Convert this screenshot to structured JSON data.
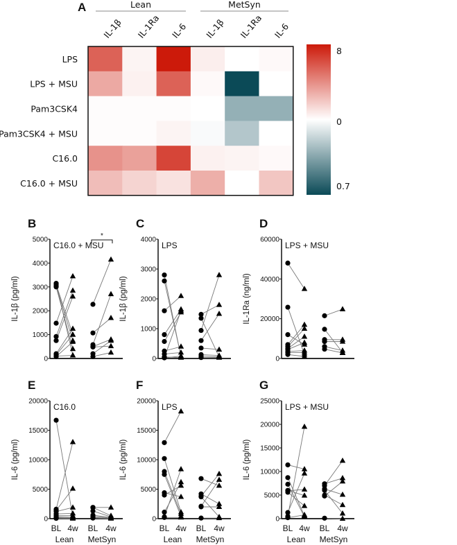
{
  "chart_data": [
    {
      "type": "heatmap",
      "panel": "A",
      "groups": [
        "Lean",
        "MetSyn"
      ],
      "columns": [
        "IL-1β",
        "IL-1Ra",
        "IL-6",
        "IL-1β",
        "IL-1Ra",
        "IL-6"
      ],
      "rows": [
        "LPS",
        "LPS + MSU",
        "Pam3CSK4",
        "Pam3CSK4 + MSU",
        "C16.0",
        "C16.0 + MSU"
      ],
      "values": [
        [
          5.5,
          0.4,
          8,
          0.6,
          0,
          0.2
        ],
        [
          3,
          0.5,
          5.5,
          0.2,
          -8,
          0
        ],
        [
          0.1,
          0.1,
          0.1,
          0,
          -3.5,
          -3.5
        ],
        [
          0.1,
          0.1,
          0.4,
          -0.2,
          -2.5,
          0
        ],
        [
          3.8,
          3.3,
          6.5,
          0.5,
          0.4,
          0.2
        ],
        [
          2.3,
          1.5,
          1,
          2.8,
          0,
          2
        ]
      ],
      "colorbar": {
        "labels": [
          "8",
          "0",
          "0.7"
        ],
        "max_color": "#cc1a0a",
        "mid_color": "#ffffff",
        "min_color": "#0b4a57"
      }
    },
    {
      "type": "scatter",
      "panel": "B",
      "title": "C16.0 + MSU",
      "ylabel": "IL-1β (pg/ml)",
      "ylim": [
        0,
        5000
      ],
      "yticks": [
        "0",
        "1000",
        "2000",
        "3000",
        "4000",
        "5000"
      ],
      "annotation": "*",
      "lean": [
        [
          3150,
          130
        ],
        [
          3100,
          1000
        ],
        [
          3050,
          750
        ],
        [
          3000,
          400
        ],
        [
          1480,
          3450
        ],
        [
          920,
          2850
        ],
        [
          750,
          2600
        ],
        [
          200,
          1250
        ],
        [
          150,
          1000
        ],
        [
          100,
          130
        ],
        [
          80,
          700
        ]
      ],
      "metsyn": [
        [
          2270,
          4150
        ],
        [
          1070,
          1700
        ],
        [
          580,
          2700
        ],
        [
          500,
          800
        ],
        [
          480,
          520
        ],
        [
          200,
          750
        ],
        [
          80,
          250
        ]
      ]
    },
    {
      "type": "scatter",
      "panel": "C",
      "title": "LPS",
      "ylabel": "IL-1β (pg/ml)",
      "ylim": [
        0,
        4000
      ],
      "yticks": [
        "0",
        "1000",
        "2000",
        "3000",
        "4000"
      ],
      "lean": [
        [
          2800,
          50
        ],
        [
          2600,
          80
        ],
        [
          1600,
          2100
        ],
        [
          800,
          1650
        ],
        [
          570,
          1550
        ],
        [
          250,
          400
        ],
        [
          150,
          200
        ],
        [
          50,
          30
        ],
        [
          30,
          1600
        ],
        [
          20,
          80
        ]
      ],
      "metsyn": [
        [
          1480,
          1800
        ],
        [
          1350,
          50
        ],
        [
          940,
          2800
        ],
        [
          600,
          1500
        ],
        [
          350,
          300
        ],
        [
          130,
          100
        ],
        [
          80,
          50
        ],
        [
          30,
          30
        ]
      ]
    },
    {
      "type": "scatter",
      "panel": "D",
      "title": "LPS + MSU",
      "ylabel": "IL-1Ra (ng/ml)",
      "ylim": [
        0,
        60000
      ],
      "yticks": [
        "0",
        "20000",
        "40000",
        "60000"
      ],
      "lean": [
        [
          48000,
          35000
        ],
        [
          25800,
          2000
        ],
        [
          12000,
          7000
        ],
        [
          7000,
          17000
        ],
        [
          6000,
          15000
        ],
        [
          5000,
          11000
        ],
        [
          4500,
          8000
        ],
        [
          3500,
          4000
        ],
        [
          3000,
          3000
        ],
        [
          2000,
          1000
        ]
      ],
      "metsyn": [
        [
          21500,
          24800
        ],
        [
          14700,
          3000
        ],
        [
          9500,
          9500
        ],
        [
          8500,
          8500
        ],
        [
          6000,
          4000
        ],
        [
          4700,
          2800
        ]
      ]
    },
    {
      "type": "scatter",
      "panel": "E",
      "title": "C16.0",
      "ylabel": "IL-6 (pg/ml)",
      "ylim": [
        0,
        20000
      ],
      "yticks": [
        "0",
        "5000",
        "10000",
        "15000",
        "20000"
      ],
      "lean": [
        [
          16700,
          300
        ],
        [
          1600,
          13000
        ],
        [
          1400,
          5100
        ],
        [
          1200,
          1900
        ],
        [
          800,
          900
        ],
        [
          500,
          500
        ],
        [
          300,
          200
        ],
        [
          200,
          100
        ],
        [
          100,
          50
        ],
        [
          50,
          30
        ]
      ],
      "metsyn": [
        [
          1900,
          1900
        ],
        [
          1900,
          500
        ],
        [
          1300,
          300
        ],
        [
          600,
          200
        ],
        [
          400,
          100
        ],
        [
          200,
          50
        ],
        [
          100,
          30
        ]
      ]
    },
    {
      "type": "scatter",
      "panel": "F",
      "title": "LPS",
      "ylabel": "IL-6 (pg/ml)",
      "ylim": [
        0,
        20000
      ],
      "yticks": [
        "0",
        "5000",
        "10000",
        "15000",
        "20000"
      ],
      "lean": [
        [
          12900,
          18200
        ],
        [
          10200,
          1100
        ],
        [
          8000,
          800
        ],
        [
          7500,
          400
        ],
        [
          4400,
          3700
        ],
        [
          4000,
          5600
        ],
        [
          1100,
          6200
        ],
        [
          300,
          8400
        ],
        [
          200,
          200
        ]
      ],
      "metsyn": [
        [
          6800,
          5600
        ],
        [
          4200,
          2500
        ],
        [
          3800,
          7600
        ],
        [
          3700,
          300
        ],
        [
          2000,
          2000
        ],
        [
          2100,
          6600
        ],
        [
          100,
          100
        ]
      ]
    },
    {
      "type": "scatter",
      "panel": "G",
      "title": "LPS + MSU",
      "ylabel": "IL-6 (pg/ml)",
      "ylim": [
        0,
        25000
      ],
      "yticks": [
        "0",
        "5000",
        "10000",
        "15000",
        "20000",
        "25000"
      ],
      "lean": [
        [
          11400,
          10500
        ],
        [
          8700,
          600
        ],
        [
          7300,
          400
        ],
        [
          6000,
          4900
        ],
        [
          5600,
          2700
        ],
        [
          5900,
          6200
        ],
        [
          1300,
          9600
        ],
        [
          500,
          19500
        ],
        [
          200,
          800
        ]
      ],
      "metsyn": [
        [
          7400,
          8600
        ],
        [
          7000,
          12300
        ],
        [
          6300,
          5100
        ],
        [
          6000,
          1100
        ],
        [
          5000,
          2900
        ],
        [
          4800,
          7900
        ],
        [
          100,
          0
        ]
      ]
    }
  ],
  "xaxis": {
    "timepoints": [
      "BL",
      "4w"
    ],
    "groups": [
      "Lean",
      "MetSyn"
    ]
  }
}
